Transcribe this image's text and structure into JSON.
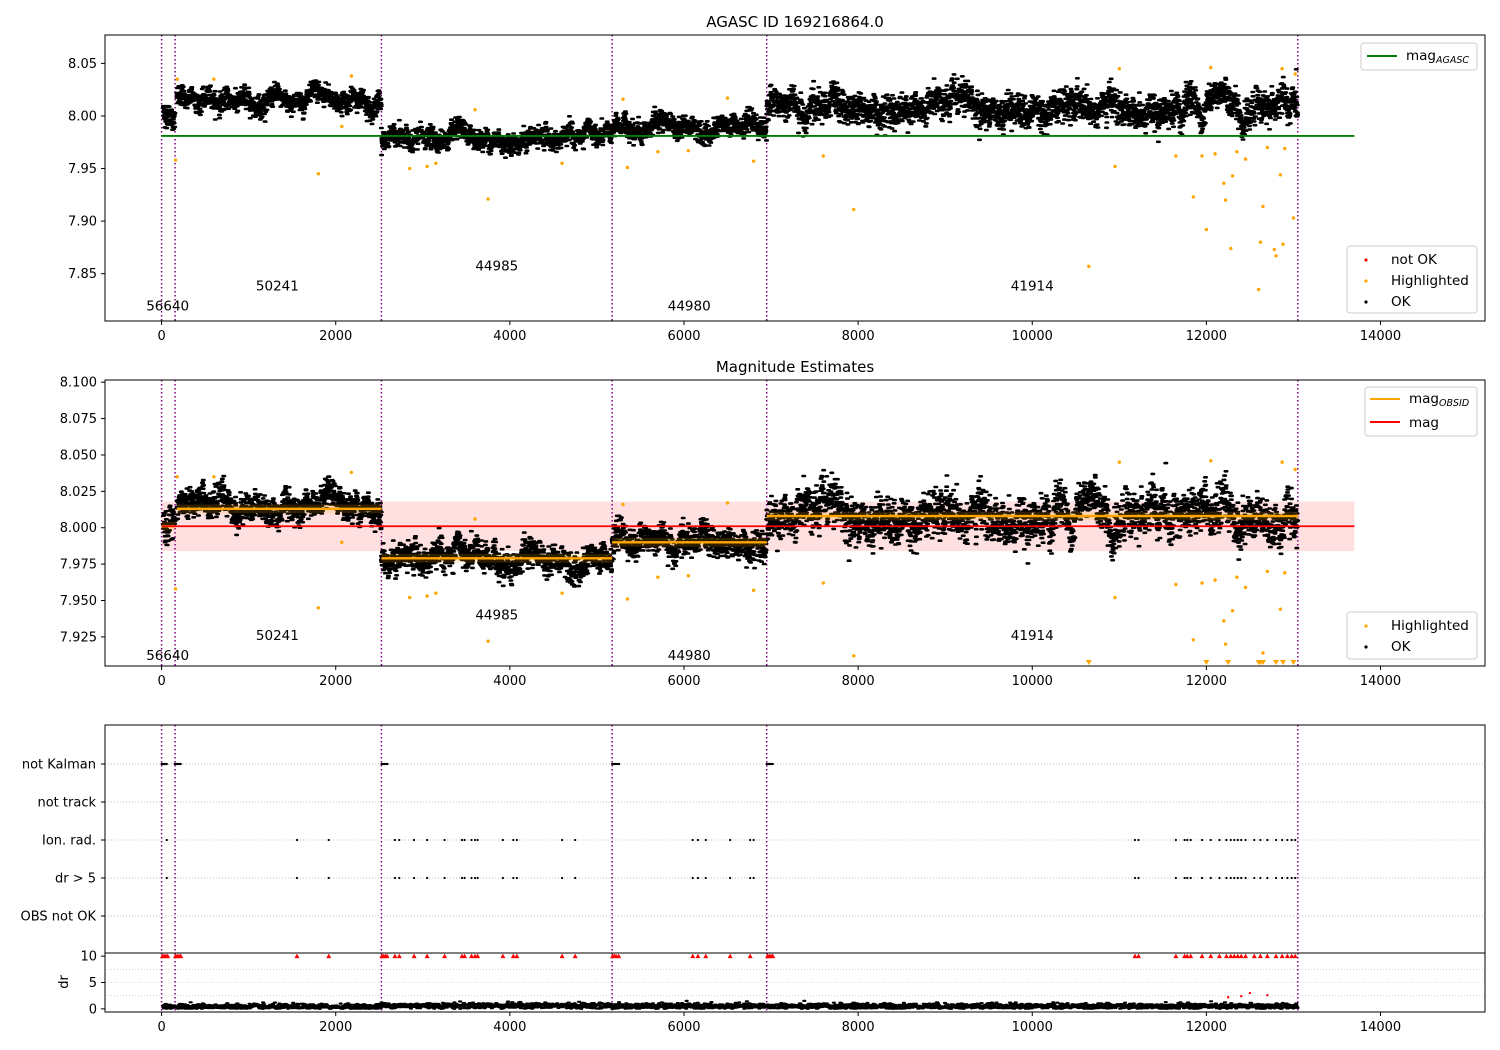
{
  "figure_title": "AGASC ID 169216864.0",
  "chart_data": [
    {
      "id": "top",
      "type": "scatter",
      "title": "AGASC ID 169216864.0",
      "xlabel": "",
      "ylabel": "",
      "xlim": [
        -650,
        15200
      ],
      "ylim": [
        7.805,
        8.077
      ],
      "xticks": [
        0,
        2000,
        4000,
        6000,
        8000,
        10000,
        12000,
        14000
      ],
      "yticks": [
        7.85,
        7.9,
        7.95,
        8.0,
        8.05
      ],
      "ytick_labels": [
        "7.85",
        "7.90",
        "7.95",
        "8.00",
        "8.05"
      ],
      "obsid_boundaries": [
        0,
        155,
        2525,
        5175,
        6950,
        13050
      ],
      "obsid_labels": [
        {
          "label": "56640",
          "x": 70,
          "y": 7.815
        },
        {
          "label": "50241",
          "x": 1330,
          "y": 7.834
        },
        {
          "label": "44985",
          "x": 3850,
          "y": 7.853
        },
        {
          "label": "44980",
          "x": 6060,
          "y": 7.815
        },
        {
          "label": "41914",
          "x": 10000,
          "y": 7.834
        }
      ],
      "segments": [
        {
          "x0": 20,
          "x1": 155,
          "mean": 8.003,
          "sigma": 0.007
        },
        {
          "x0": 175,
          "x1": 2525,
          "mean": 8.015,
          "sigma": 0.006
        },
        {
          "x0": 2525,
          "x1": 5175,
          "mean": 7.978,
          "sigma": 0.006
        },
        {
          "x0": 5175,
          "x1": 6950,
          "mean": 7.99,
          "sigma": 0.006
        },
        {
          "x0": 6950,
          "x1": 13050,
          "mean": 8.008,
          "sigma": 0.009
        }
      ],
      "reference_lines": [
        {
          "name": "mag_AGASC",
          "y": 7.981,
          "x0": 0,
          "x1": 13700,
          "color": "#008000"
        }
      ],
      "highlighted_points": [
        [
          160,
          7.958
        ],
        [
          180,
          8.035
        ],
        [
          600,
          8.035
        ],
        [
          1800,
          7.945
        ],
        [
          2070,
          7.99
        ],
        [
          2180,
          8.038
        ],
        [
          2850,
          7.95
        ],
        [
          3050,
          7.952
        ],
        [
          3150,
          7.955
        ],
        [
          3750,
          7.921
        ],
        [
          3600,
          8.006
        ],
        [
          4600,
          7.955
        ],
        [
          5300,
          8.016
        ],
        [
          5350,
          7.951
        ],
        [
          5700,
          7.966
        ],
        [
          6050,
          7.967
        ],
        [
          6500,
          8.017
        ],
        [
          6800,
          7.957
        ],
        [
          7600,
          7.962
        ],
        [
          7950,
          7.911
        ],
        [
          10650,
          7.857
        ],
        [
          11000,
          8.045
        ],
        [
          10950,
          7.952
        ],
        [
          11650,
          7.962
        ],
        [
          11850,
          7.923
        ],
        [
          11950,
          7.962
        ],
        [
          12000,
          7.892
        ],
        [
          12050,
          8.046
        ],
        [
          12100,
          7.964
        ],
        [
          12200,
          7.936
        ],
        [
          12220,
          7.92
        ],
        [
          12280,
          7.874
        ],
        [
          12300,
          7.943
        ],
        [
          12350,
          7.966
        ],
        [
          12450,
          7.959
        ],
        [
          12600,
          7.835
        ],
        [
          12620,
          7.88
        ],
        [
          12650,
          7.914
        ],
        [
          12700,
          7.97
        ],
        [
          12780,
          7.873
        ],
        [
          12800,
          7.867
        ],
        [
          12850,
          7.944
        ],
        [
          12880,
          7.878
        ],
        [
          12900,
          7.969
        ],
        [
          12870,
          8.045
        ],
        [
          13000,
          7.903
        ],
        [
          13020,
          8.04
        ]
      ],
      "legend_lines": [
        {
          "label": "mag",
          "sub": "AGASC",
          "color": "#008000"
        }
      ],
      "legend_points": [
        {
          "label": "not OK",
          "color": "#ff0000"
        },
        {
          "label": "Highlighted",
          "color": "#ffa500"
        },
        {
          "label": "OK",
          "color": "#000000"
        }
      ]
    },
    {
      "id": "mid",
      "type": "scatter",
      "title": "Magnitude Estimates",
      "xlabel": "",
      "ylabel": "",
      "xlim": [
        -650,
        15200
      ],
      "ylim": [
        7.905,
        8.1015
      ],
      "xticks": [
        0,
        2000,
        4000,
        6000,
        8000,
        10000,
        12000,
        14000
      ],
      "yticks": [
        7.925,
        7.95,
        7.975,
        8.0,
        8.025,
        8.05,
        8.075,
        8.1
      ],
      "ytick_labels": [
        "7.925",
        "7.950",
        "7.975",
        "8.000",
        "8.025",
        "8.050",
        "8.075",
        "8.100"
      ],
      "obsid_boundaries": [
        0,
        155,
        2525,
        5175,
        6950,
        13050
      ],
      "obsid_labels": [
        {
          "label": "56640",
          "x": 70,
          "y": 7.909
        },
        {
          "label": "50241",
          "x": 1330,
          "y": 7.923
        },
        {
          "label": "44985",
          "x": 3850,
          "y": 7.937
        },
        {
          "label": "44980",
          "x": 6060,
          "y": 7.909
        },
        {
          "label": "41914",
          "x": 10000,
          "y": 7.923
        }
      ],
      "mag": 8.001,
      "mag_band": [
        7.984,
        8.018
      ],
      "mag_band_xrange": [
        0,
        13700
      ],
      "mag_obsid": [
        {
          "x0": 0,
          "x1": 155,
          "y": 8.001
        },
        {
          "x0": 175,
          "x1": 2525,
          "y": 8.013
        },
        {
          "x0": 2525,
          "x1": 5175,
          "y": 7.979
        },
        {
          "x0": 5175,
          "x1": 6950,
          "y": 7.99
        },
        {
          "x0": 6950,
          "x1": 13050,
          "y": 8.008
        }
      ],
      "segments": [
        {
          "x0": 20,
          "x1": 155,
          "mean": 8.003,
          "sigma": 0.007
        },
        {
          "x0": 175,
          "x1": 2525,
          "mean": 8.015,
          "sigma": 0.006
        },
        {
          "x0": 2525,
          "x1": 5175,
          "mean": 7.978,
          "sigma": 0.006
        },
        {
          "x0": 5175,
          "x1": 6950,
          "mean": 7.99,
          "sigma": 0.006
        },
        {
          "x0": 6950,
          "x1": 13050,
          "mean": 8.008,
          "sigma": 0.009
        }
      ],
      "highlighted_points": [
        [
          160,
          7.958
        ],
        [
          180,
          8.035
        ],
        [
          600,
          8.035
        ],
        [
          1800,
          7.945
        ],
        [
          2070,
          7.99
        ],
        [
          2180,
          8.038
        ],
        [
          2850,
          7.952
        ],
        [
          3050,
          7.953
        ],
        [
          3150,
          7.955
        ],
        [
          3750,
          7.922
        ],
        [
          3600,
          8.006
        ],
        [
          4600,
          7.955
        ],
        [
          5300,
          8.016
        ],
        [
          5350,
          7.951
        ],
        [
          5700,
          7.966
        ],
        [
          6050,
          7.967
        ],
        [
          6500,
          8.017
        ],
        [
          6800,
          7.957
        ],
        [
          7600,
          7.962
        ],
        [
          7950,
          7.912
        ],
        [
          11000,
          8.045
        ],
        [
          10950,
          7.952
        ],
        [
          11650,
          7.961
        ],
        [
          11850,
          7.923
        ],
        [
          11950,
          7.962
        ],
        [
          12050,
          8.046
        ],
        [
          12100,
          7.964
        ],
        [
          12200,
          7.936
        ],
        [
          12220,
          7.92
        ],
        [
          12300,
          7.943
        ],
        [
          12350,
          7.966
        ],
        [
          12450,
          7.959
        ],
        [
          12650,
          7.914
        ],
        [
          12700,
          7.97
        ],
        [
          12850,
          7.944
        ],
        [
          12900,
          7.969
        ],
        [
          12870,
          8.045
        ],
        [
          13020,
          8.04
        ]
      ],
      "below_axis_markers": [
        10650,
        12000,
        12250,
        12600,
        12620,
        12650,
        12800,
        12880,
        13000
      ],
      "legend_lines": [
        {
          "label": "mag",
          "sub": "OBSID",
          "color": "#ffa500"
        },
        {
          "label": "mag",
          "sub": "",
          "color": "#ff0000"
        }
      ],
      "legend_points": [
        {
          "label": "Highlighted",
          "color": "#ffa500"
        },
        {
          "label": "OK",
          "color": "#000000"
        }
      ]
    },
    {
      "id": "flags",
      "type": "scatter",
      "xlim": [
        -650,
        15200
      ],
      "obsid_boundaries": [
        0,
        155,
        2525,
        5175,
        6950,
        13050
      ],
      "categories": [
        "not Kalman",
        "not track",
        "Ion. rad.",
        "dr > 5",
        "OBS not OK"
      ],
      "not_kalman_ranges": [
        [
          0,
          60
        ],
        [
          150,
          220
        ],
        [
          2525,
          2595
        ],
        [
          5175,
          5255
        ],
        [
          6950,
          7020
        ]
      ],
      "ion_rad_x": [
        60,
        1555,
        1920,
        2680,
        2730,
        2900,
        3050,
        3250,
        3450,
        3480,
        3560,
        3600,
        3630,
        3920,
        4040,
        4080,
        4600,
        4750,
        6100,
        6160,
        6250,
        6530,
        6760,
        6800,
        11180,
        11220,
        11650,
        11750,
        11780,
        11820,
        11950,
        12050,
        12150,
        12230,
        12280,
        12320,
        12360,
        12400,
        12450,
        12550,
        12620,
        12700,
        12800,
        12870,
        12930,
        12980,
        13020
      ],
      "dr_gt5_x": [
        60,
        1555,
        1920,
        2680,
        2730,
        2900,
        3050,
        3250,
        3450,
        3480,
        3560,
        3600,
        3630,
        3920,
        4040,
        4080,
        4600,
        4750,
        6100,
        6160,
        6250,
        6530,
        6760,
        6800,
        11180,
        11220,
        11650,
        11750,
        11780,
        11820,
        11950,
        12050,
        12150,
        12230,
        12280,
        12320,
        12360,
        12400,
        12450,
        12550,
        12620,
        12700,
        12800,
        12870,
        12930,
        12980,
        13020
      ]
    },
    {
      "id": "dr",
      "type": "scatter",
      "ylabel": "dr",
      "xlim": [
        -650,
        15200
      ],
      "ylim": [
        -0.6,
        10.6
      ],
      "xticks": [
        0,
        2000,
        4000,
        6000,
        8000,
        10000,
        12000,
        14000
      ],
      "yticks": [
        0,
        5,
        10
      ],
      "ytick_labels": [
        "0",
        "5",
        "10"
      ],
      "obsid_boundaries": [
        0,
        155,
        2525,
        5175,
        6950,
        13050
      ],
      "clipped_value": 10,
      "clipped_x": [
        10,
        30,
        50,
        70,
        160,
        180,
        200,
        220,
        1555,
        1920,
        2530,
        2550,
        2570,
        2590,
        2680,
        2730,
        2900,
        3050,
        3250,
        3450,
        3480,
        3560,
        3600,
        3630,
        3920,
        4040,
        4080,
        4600,
        4750,
        5180,
        5200,
        5220,
        5250,
        6100,
        6160,
        6250,
        6530,
        6760,
        6960,
        6980,
        7000,
        7020,
        11180,
        11220,
        11650,
        11750,
        11780,
        11820,
        11950,
        12050,
        12150,
        12230,
        12280,
        12320,
        12360,
        12400,
        12450,
        12550,
        12620,
        12700,
        12800,
        12870,
        12930,
        12980,
        13020
      ],
      "noise_segments": [
        {
          "x0": 20,
          "x1": 155,
          "mean": 0.4
        },
        {
          "x0": 175,
          "x1": 2525,
          "mean": 0.4
        },
        {
          "x0": 2525,
          "x1": 5175,
          "mean": 0.6
        },
        {
          "x0": 5175,
          "x1": 6950,
          "mean": 0.5
        },
        {
          "x0": 6950,
          "x1": 13050,
          "mean": 0.5
        }
      ],
      "red_points": [
        [
          12250,
          2.2
        ],
        [
          12400,
          2.4
        ],
        [
          12500,
          3.0
        ],
        [
          12700,
          2.6
        ]
      ]
    }
  ]
}
